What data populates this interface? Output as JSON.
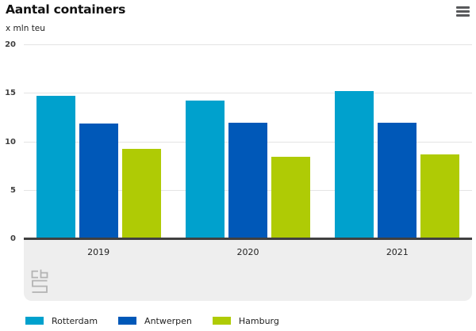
{
  "header": {
    "title": "Aantal containers",
    "unit_label": "x mln teu"
  },
  "icons": {
    "menu": "hamburger-menu-icon",
    "logo": "cbs-logo"
  },
  "colors": {
    "rotterdam": "#00a1cd",
    "antwerpen": "#0058b8",
    "hamburg": "#afcb05",
    "axis_line": "#404040",
    "gridline": "#e4e4e4",
    "band_background": "#eeeeee",
    "logo_gray": "#b3b3b3"
  },
  "chart_data": {
    "type": "bar",
    "title": "Aantal containers",
    "ylabel": "x mln teu",
    "categories": [
      "2019",
      "2020",
      "2021"
    ],
    "series": [
      {
        "name": "Rotterdam",
        "color": "#00a1cd",
        "values": [
          14.8,
          14.3,
          15.3
        ]
      },
      {
        "name": "Antwerpen",
        "color": "#0058b8",
        "values": [
          11.9,
          12.0,
          12.0
        ]
      },
      {
        "name": "Hamburg",
        "color": "#afcb05",
        "values": [
          9.3,
          8.5,
          8.7
        ]
      }
    ],
    "ylim": [
      0,
      20
    ],
    "yticks": [
      0,
      5,
      10,
      15,
      20
    ],
    "grid": true,
    "legend_position": "bottom"
  }
}
